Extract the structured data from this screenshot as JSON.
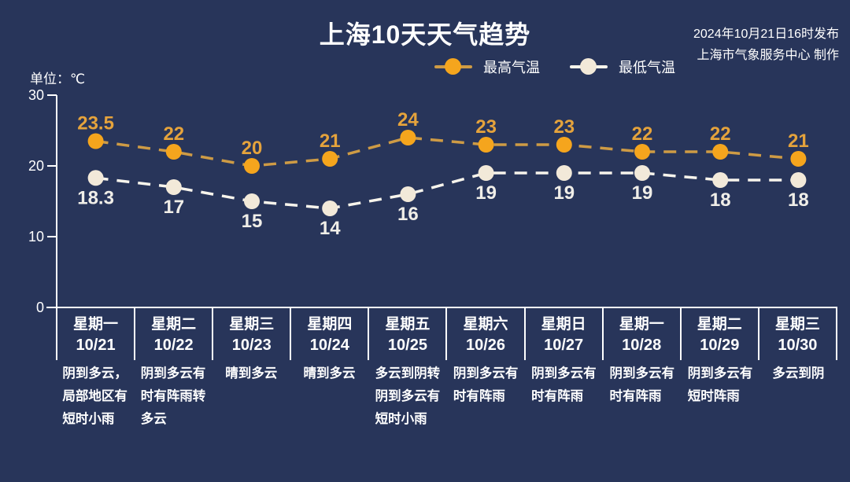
{
  "header": {
    "title": "上海10天天气趋势",
    "publish_line1": "2024年10月21日16时发布",
    "publish_line2": "上海市气象服务中心 制作"
  },
  "unit_label": "单位：℃",
  "legend": [
    {
      "label": "最高气温",
      "series": "high"
    },
    {
      "label": "最低气温",
      "series": "low"
    }
  ],
  "colors": {
    "background": "#28355A",
    "text": "#FFFFFF",
    "axis": "#FFFFFF",
    "separator": "#FFFFFF",
    "high_line": "#CE9B45",
    "high_marker": "#F5A51D",
    "high_label": "#E5A33C",
    "low_line": "#F7F4EC",
    "low_marker": "#F2E9D9",
    "low_label": "#F0EEE8"
  },
  "chart_data": {
    "type": "line",
    "title": "上海10天天气趋势",
    "ylabel": "单位：℃",
    "ylim": [
      0,
      30
    ],
    "yticks": [
      0,
      10,
      20,
      30
    ],
    "grid": false,
    "legend_position": "top-center",
    "line_style": "dashed",
    "x_days": [
      "星期一",
      "星期二",
      "星期三",
      "星期四",
      "星期五",
      "星期六",
      "星期日",
      "星期一",
      "星期二",
      "星期三"
    ],
    "x_dates": [
      "10/21",
      "10/22",
      "10/23",
      "10/24",
      "10/25",
      "10/26",
      "10/27",
      "10/28",
      "10/29",
      "10/30"
    ],
    "series": [
      {
        "name": "最高气温",
        "color_key": "high",
        "values": [
          23.5,
          22,
          20,
          21,
          24,
          23,
          23,
          22,
          22,
          21
        ]
      },
      {
        "name": "最低气温",
        "color_key": "low",
        "values": [
          18.3,
          17,
          15,
          14,
          16,
          19,
          19,
          19,
          18,
          18
        ]
      }
    ],
    "weather_text": [
      "阴到多云，\n局部地区有\n短时小雨",
      "阴到多云有\n时有阵雨转\n多云",
      "晴到多云",
      "晴到多云",
      "多云到阴转\n阴到多云有\n短时小雨",
      "阴到多云有\n时有阵雨",
      "阴到多云有\n时有阵雨",
      "阴到多云有\n时有阵雨",
      "阴到多云有\n短时阵雨",
      "多云到阴"
    ]
  }
}
